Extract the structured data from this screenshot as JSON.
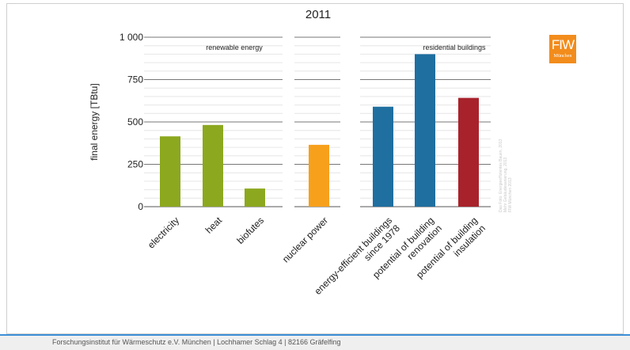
{
  "chart_data": {
    "type": "bar",
    "title": "2011",
    "ylabel": "final energy [TBtu]",
    "ylim": [
      0,
      1000
    ],
    "yticks": [
      0,
      250,
      500,
      750,
      1000
    ],
    "ytick_labels": [
      "0",
      "250",
      "500",
      "750",
      "1 000"
    ],
    "grid": true,
    "groups": [
      {
        "label": "renewable energy",
        "color": "#8ca81f",
        "categories": [
          "electricity",
          "heat",
          "biofutes"
        ],
        "values": [
          415,
          482,
          107
        ]
      },
      {
        "label": "",
        "color": "#f7a01c",
        "categories": [
          "nuclear power"
        ],
        "values": [
          365
        ]
      },
      {
        "label": "residential buildings",
        "color": "#1f6fa0",
        "categories": [
          "energy-efficient buildings\nsince 1978",
          "potential of building\nrenovation"
        ],
        "values": [
          590,
          900
        ]
      },
      {
        "label": "",
        "color": "#a8222b",
        "categories": [
          "potential of building\ninsulation"
        ],
        "values": [
          642
        ]
      }
    ]
  },
  "logo": {
    "main": "FIW",
    "sub": "München"
  },
  "watermark": [
    "Das Foto: Energieeffizientes Bauen, 2013",
    "Mehr Gebäudesanierung, 2013",
    "FIW München 2013"
  ],
  "footer": {
    "text": "Forschungsinstitut für Wärmeschutz e.V. München | Lochhamer Schlag 4 | 82166 Gräfelfing"
  }
}
